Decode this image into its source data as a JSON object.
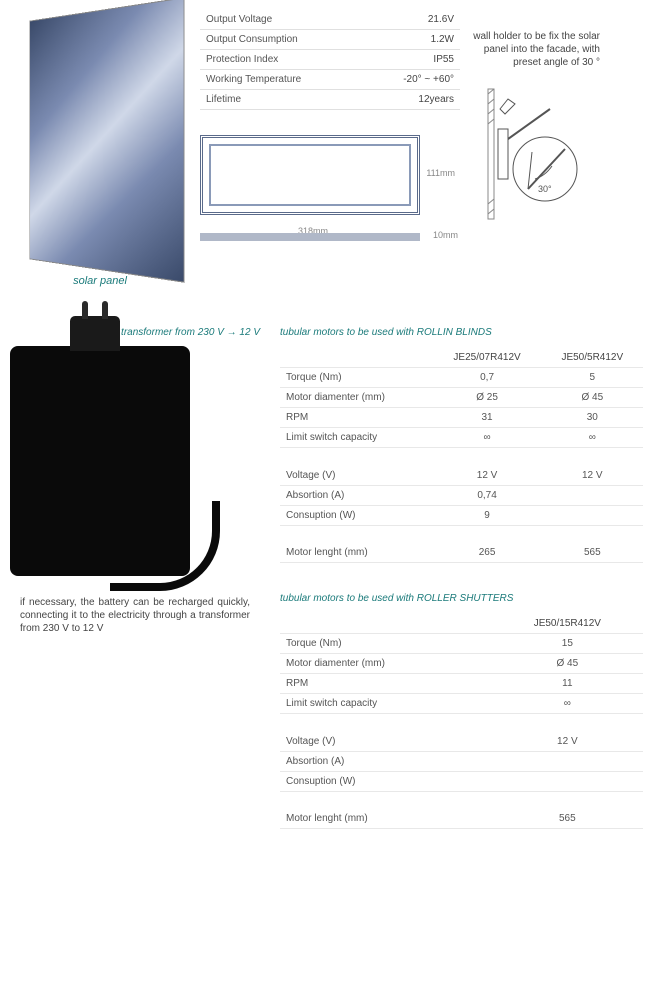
{
  "solar": {
    "label": "solar panel",
    "specs": [
      {
        "name": "Output Voltage",
        "val": "21.6V"
      },
      {
        "name": "Output Consumption",
        "val": "1.2W"
      },
      {
        "name": "Protection Index",
        "val": "IP55"
      },
      {
        "name": "Working Temperature",
        "val": "-20° ~ +60°"
      },
      {
        "name": "Lifetime",
        "val": "12years"
      }
    ],
    "dims": {
      "height": "111mm",
      "width": "318mm",
      "depth": "10mm"
    }
  },
  "wall_holder": {
    "note": "wall holder to be fix the solar panel into the facade, with preset angle of 30 °",
    "angle_label": "30°"
  },
  "transformer": {
    "label": "transformer from 230 V → 12 V",
    "note": "if necessary, the battery can be recharged quickly, connecting it to the electricity through a transformer from 230 V to 12 V"
  },
  "motors_rollin": {
    "title": "tubular motors to be used with ROLLIN BLINDS",
    "cols": [
      "JE25/07R412V",
      "JE50/5R412V"
    ],
    "rows": [
      {
        "name": "Torque (Nm)",
        "vals": [
          "0,7",
          "5"
        ]
      },
      {
        "name": "Motor diamenter (mm)",
        "vals": [
          "Ø 25",
          "Ø 45"
        ]
      },
      {
        "name": "RPM",
        "vals": [
          "31",
          "30"
        ]
      },
      {
        "name": "Limit switch capacity",
        "vals": [
          "∞",
          "∞"
        ]
      }
    ],
    "rows2": [
      {
        "name": "Voltage (V)",
        "vals": [
          "12 V",
          "12 V"
        ]
      },
      {
        "name": "Absortion (A)",
        "vals": [
          "0,74",
          ""
        ]
      },
      {
        "name": "Consuption (W)",
        "vals": [
          "9",
          ""
        ]
      }
    ],
    "rows3": [
      {
        "name": "Motor lenght (mm)",
        "vals": [
          "265",
          "565"
        ]
      }
    ]
  },
  "motors_shutter": {
    "title": "tubular motors to be used with ROLLER SHUTTERS",
    "cols": [
      "JE50/15R412V"
    ],
    "rows": [
      {
        "name": "Torque (Nm)",
        "vals": [
          "15"
        ]
      },
      {
        "name": "Motor diamenter (mm)",
        "vals": [
          "Ø 45"
        ]
      },
      {
        "name": "RPM",
        "vals": [
          "11"
        ]
      },
      {
        "name": "Limit switch capacity",
        "vals": [
          "∞"
        ]
      }
    ],
    "rows2": [
      {
        "name": "Voltage (V)",
        "vals": [
          "12 V"
        ]
      },
      {
        "name": "Absortion (A)",
        "vals": [
          ""
        ]
      },
      {
        "name": "Consuption (W)",
        "vals": [
          ""
        ]
      }
    ],
    "rows3": [
      {
        "name": "Motor lenght (mm)",
        "vals": [
          "565"
        ]
      }
    ]
  }
}
